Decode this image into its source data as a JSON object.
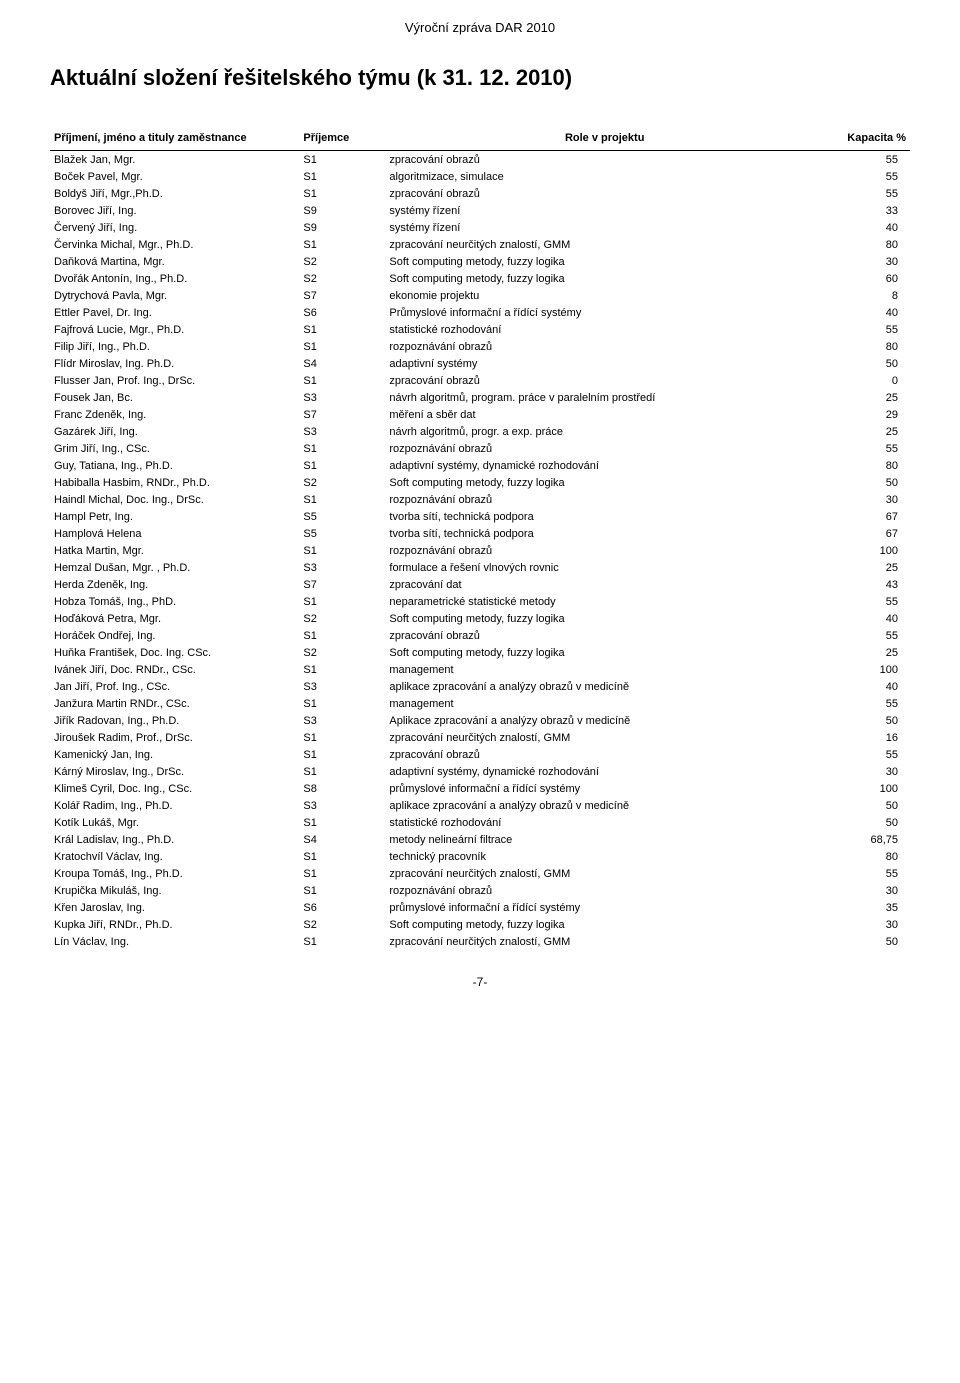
{
  "header": "Výroční zpráva DAR 2010",
  "title": "Aktuální složení řešitelského týmu (k 31. 12. 2010)",
  "columns": {
    "name": "Příjmení, jméno a tituly zaměstnance",
    "recipient": "Příjemce",
    "role": "Role v projektu",
    "capacity": "Kapacita %"
  },
  "rows": [
    {
      "name": "Blažek Jan, Mgr.",
      "recv": "S1",
      "role": "zpracování obrazů",
      "cap": "55"
    },
    {
      "name": "Boček Pavel, Mgr.",
      "recv": "S1",
      "role": "algoritmizace, simulace",
      "cap": "55"
    },
    {
      "name": "Boldyš Jiří, Mgr.,Ph.D.",
      "recv": "S1",
      "role": "zpracování obrazů",
      "cap": "55"
    },
    {
      "name": "Borovec Jiří, Ing.",
      "recv": "S9",
      "role": "systémy řízení",
      "cap": "33"
    },
    {
      "name": "Červený Jiří, Ing.",
      "recv": "S9",
      "role": "systémy řízení",
      "cap": "40"
    },
    {
      "name": "Červinka Michal, Mgr., Ph.D.",
      "recv": "S1",
      "role": "zpracování neurčitých znalostí, GMM",
      "cap": "80"
    },
    {
      "name": "Daňková Martina, Mgr.",
      "recv": "S2",
      "role": "Soft computing metody, fuzzy logika",
      "cap": "30"
    },
    {
      "name": "Dvořák Antonín, Ing., Ph.D.",
      "recv": "S2",
      "role": "Soft computing metody, fuzzy logika",
      "cap": "60"
    },
    {
      "name": "Dytrychová Pavla, Mgr.",
      "recv": "S7",
      "role": "ekonomie projektu",
      "cap": "8"
    },
    {
      "name": "Ettler Pavel, Dr. Ing.",
      "recv": "S6",
      "role": "Průmyslové informační a řídící systémy",
      "cap": "40"
    },
    {
      "name": "Fajfrová Lucie, Mgr., Ph.D.",
      "recv": "S1",
      "role": "statistické rozhodování",
      "cap": "55"
    },
    {
      "name": "Filip Jiří, Ing., Ph.D.",
      "recv": "S1",
      "role": "rozpoznávání obrazů",
      "cap": "80"
    },
    {
      "name": "Flídr Miroslav, Ing. Ph.D.",
      "recv": "S4",
      "role": "adaptivní systémy",
      "cap": "50"
    },
    {
      "name": "Flusser Jan, Prof. Ing., DrSc.",
      "recv": "S1",
      "role": "zpracování obrazů",
      "cap": "0"
    },
    {
      "name": "Fousek Jan, Bc.",
      "recv": "S3",
      "role": "návrh algoritmů, program. práce v paralelním prostředí",
      "cap": "25"
    },
    {
      "name": "Franc Zdeněk, Ing.",
      "recv": "S7",
      "role": "měření a sběr dat",
      "cap": "29"
    },
    {
      "name": "Gazárek Jiří, Ing.",
      "recv": "S3",
      "role": "návrh algoritmů, progr. a exp. práce",
      "cap": "25"
    },
    {
      "name": "Grim Jiří, Ing., CSc.",
      "recv": "S1",
      "role": "rozpoznávání obrazů",
      "cap": "55"
    },
    {
      "name": "Guy, Tatiana, Ing., Ph.D.",
      "recv": "S1",
      "role": "adaptivní systémy, dynamické rozhodování",
      "cap": "80"
    },
    {
      "name": "Habiballa Hasbim, RNDr., Ph.D.",
      "recv": "S2",
      "role": "Soft computing metody, fuzzy logika",
      "cap": "50"
    },
    {
      "name": "Haindl Michal, Doc. Ing., DrSc.",
      "recv": "S1",
      "role": "rozpoznávání obrazů",
      "cap": "30"
    },
    {
      "name": "Hampl Petr, Ing.",
      "recv": "S5",
      "role": "tvorba sítí, technická podpora",
      "cap": "67"
    },
    {
      "name": "Hamplová Helena",
      "recv": "S5",
      "role": "tvorba sítí, technická podpora",
      "cap": "67"
    },
    {
      "name": "Hatka Martin, Mgr.",
      "recv": "S1",
      "role": "rozpoznávání obrazů",
      "cap": "100"
    },
    {
      "name": "Hemzal Dušan, Mgr. , Ph.D.",
      "recv": "S3",
      "role": "formulace a řešení vlnových rovnic",
      "cap": "25"
    },
    {
      "name": "Herda Zdeněk, Ing.",
      "recv": "S7",
      "role": "zpracování dat",
      "cap": "43"
    },
    {
      "name": "Hobza Tomáš, Ing., PhD.",
      "recv": "S1",
      "role": "neparametrické statistické metody",
      "cap": "55"
    },
    {
      "name": "Hoďáková Petra, Mgr.",
      "recv": "S2",
      "role": "Soft computing metody, fuzzy logika",
      "cap": "40"
    },
    {
      "name": "Horáček Ondřej, Ing.",
      "recv": "S1",
      "role": "zpracování obrazů",
      "cap": "55"
    },
    {
      "name": "Huňka František, Doc. Ing. CSc.",
      "recv": "S2",
      "role": "Soft computing metody, fuzzy logika",
      "cap": "25"
    },
    {
      "name": "Ivánek Jiří, Doc. RNDr., CSc.",
      "recv": "S1",
      "role": "management",
      "cap": "100"
    },
    {
      "name": "Jan Jiří, Prof. Ing., CSc.",
      "recv": "S3",
      "role": "aplikace zpracování a analýzy obrazů v  medicíně",
      "cap": "40"
    },
    {
      "name": "Janžura Martin RNDr., CSc.",
      "recv": "S1",
      "role": "management",
      "cap": "55"
    },
    {
      "name": "Jiřík Radovan, Ing., Ph.D.",
      "recv": "S3",
      "role": "Aplikace zpracování a analýzy obrazů v  medicíně",
      "cap": "50"
    },
    {
      "name": "Jiroušek Radim, Prof., DrSc.",
      "recv": "S1",
      "role": "zpracování neurčitých znalostí, GMM",
      "cap": "16"
    },
    {
      "name": "Kamenický Jan, Ing.",
      "recv": "S1",
      "role": "zpracování obrazů",
      "cap": "55"
    },
    {
      "name": "Kárný Miroslav, Ing., DrSc.",
      "recv": "S1",
      "role": "adaptivní systémy, dynamické rozhodování",
      "cap": "30"
    },
    {
      "name": "Klimeš Cyril, Doc. Ing., CSc.",
      "recv": "S8",
      "role": "průmyslové informační a řídící systémy",
      "cap": "100"
    },
    {
      "name": "Kolář Radim, Ing., Ph.D.",
      "recv": "S3",
      "role": "aplikace zpracování a analýzy obrazů v  medicíně",
      "cap": "50"
    },
    {
      "name": "Kotík Lukáš, Mgr.",
      "recv": "S1",
      "role": "statistické rozhodování",
      "cap": "50"
    },
    {
      "name": "Král Ladislav, Ing., Ph.D.",
      "recv": "S4",
      "role": "metody nelineární filtrace",
      "cap": "68,75"
    },
    {
      "name": "Kratochvíl Václav, Ing.",
      "recv": "S1",
      "role": "technický pracovník",
      "cap": "80"
    },
    {
      "name": "Kroupa Tomáš, Ing., Ph.D.",
      "recv": "S1",
      "role": "zpracování neurčitých znalostí, GMM",
      "cap": "55"
    },
    {
      "name": "Krupička Mikuláš, Ing.",
      "recv": "S1",
      "role": "rozpoznávání obrazů",
      "cap": "30"
    },
    {
      "name": "Křen Jaroslav, Ing.",
      "recv": "S6",
      "role": "průmyslové informační a řídící systémy",
      "cap": "35"
    },
    {
      "name": "Kupka Jiří, RNDr., Ph.D.",
      "recv": "S2",
      "role": "Soft computing metody, fuzzy logika",
      "cap": "30"
    },
    {
      "name": "Lín Václav, Ing.",
      "recv": "S1",
      "role": "zpracování neurčitých znalostí, GMM",
      "cap": "50"
    }
  ],
  "footer": "-7-"
}
